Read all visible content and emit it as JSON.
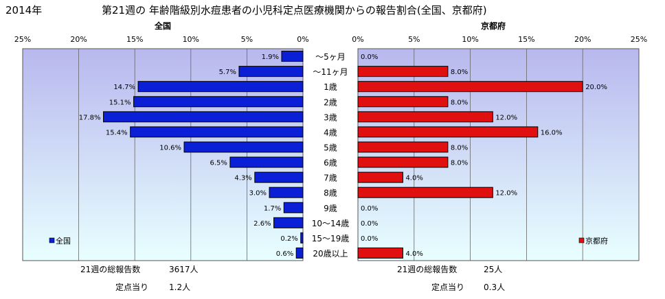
{
  "header": {
    "year": "2014年",
    "title": "第21週の 年齢階級別水痘患者の小児科定点医療機関からの報告割合(全国、京都府)"
  },
  "colors": {
    "plot_bg_top": "#b8b8ee",
    "plot_bg_bottom": "#e8ffff",
    "national_bar": "#0a1fd6",
    "kyoto_bar": "#e01010"
  },
  "chart_data": [
    {
      "type": "bar",
      "orientation": "horizontal",
      "direction": "reversed",
      "title": "全国",
      "categories": [
        "～5ヶ月",
        "～11ヶ月",
        "1歳",
        "2歳",
        "3歳",
        "4歳",
        "5歳",
        "6歳",
        "7歳",
        "8歳",
        "9歳",
        "10～14歳",
        "15～19歳",
        "20歳以上"
      ],
      "series": [
        {
          "name": "全国",
          "values": [
            1.9,
            5.7,
            14.7,
            15.1,
            17.8,
            15.4,
            10.6,
            6.5,
            4.3,
            3.0,
            1.7,
            2.6,
            0.2,
            0.6
          ],
          "labels": [
            "1.9%",
            "5.7%",
            "14.7%",
            "15.1%",
            "17.8%",
            "15.4%",
            "10.6%",
            "6.5%",
            "4.3%",
            "3.0%",
            "1.7%",
            "2.6%",
            "0.2%",
            "0.6%"
          ]
        }
      ],
      "xlim": [
        0,
        25
      ],
      "xticks": [
        "25%",
        "20%",
        "15%",
        "10%",
        "5%",
        "0%"
      ],
      "grid": true,
      "legend": "bottom-left",
      "footer": {
        "total_label": "21週の総報告数",
        "total_value": "3617人",
        "per_site_label": "定点当り",
        "per_site_value": "1.2人"
      }
    },
    {
      "type": "bar",
      "orientation": "horizontal",
      "title": "京都府",
      "categories": [
        "～5ヶ月",
        "～11ヶ月",
        "1歳",
        "2歳",
        "3歳",
        "4歳",
        "5歳",
        "6歳",
        "7歳",
        "8歳",
        "9歳",
        "10～14歳",
        "15～19歳",
        "20歳以上"
      ],
      "series": [
        {
          "name": "京都府",
          "values": [
            0.0,
            8.0,
            20.0,
            8.0,
            12.0,
            16.0,
            8.0,
            8.0,
            4.0,
            12.0,
            0.0,
            0.0,
            0.0,
            4.0
          ],
          "labels": [
            "0.0%",
            "8.0%",
            "20.0%",
            "8.0%",
            "12.0%",
            "16.0%",
            "8.0%",
            "8.0%",
            "4.0%",
            "12.0%",
            "0.0%",
            "0.0%",
            "0.0%",
            "4.0%"
          ]
        }
      ],
      "xlim": [
        0,
        25
      ],
      "xticks": [
        "0%",
        "5%",
        "10%",
        "15%",
        "20%",
        "25%"
      ],
      "grid": true,
      "legend": "bottom-right",
      "footer": {
        "total_label": "21週の総報告数",
        "total_value": "25人",
        "per_site_label": "定点当り",
        "per_site_value": "0.3人"
      }
    }
  ]
}
